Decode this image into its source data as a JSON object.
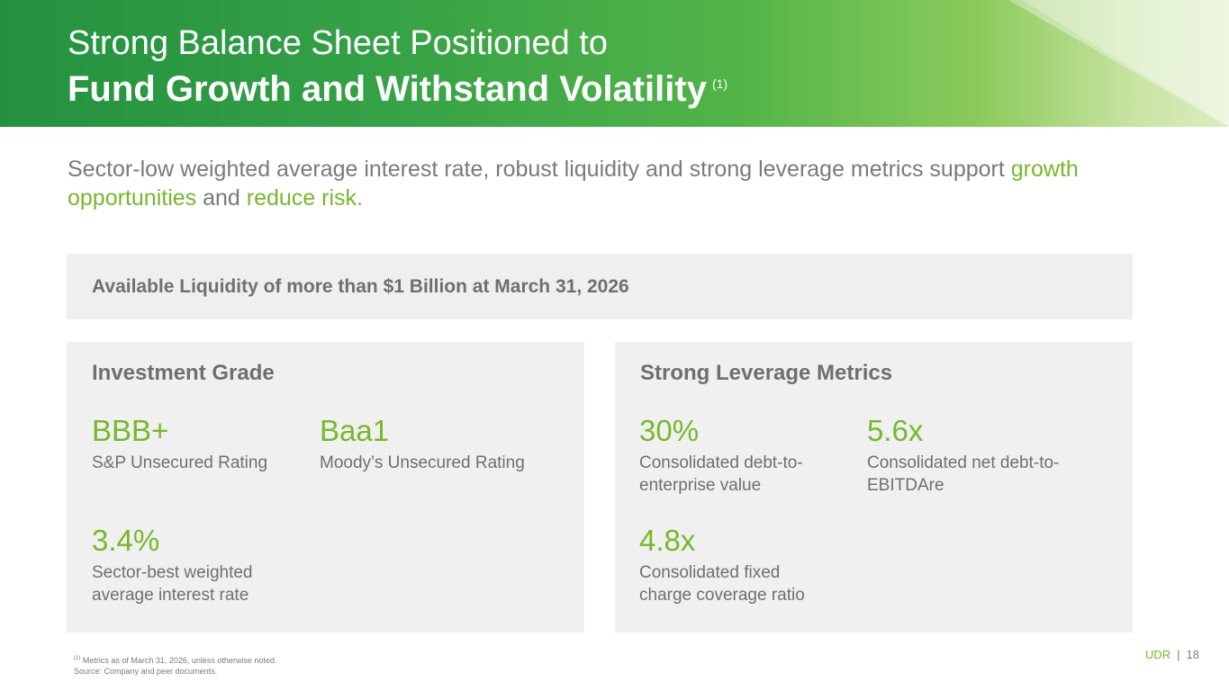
{
  "header": {
    "title_line1": "Strong Balance Sheet Positioned to",
    "title_line2": "Fund Growth and Withstand Volatility",
    "title_footnote_ref": "(1)"
  },
  "subtitle": {
    "part1": "Sector-low weighted average interest rate, robust liquidity and strong leverage metrics support ",
    "highlight1": "growth opportunities",
    "part2": " and ",
    "highlight2": "reduce risk",
    "part3": "."
  },
  "liquidity": {
    "text": "Available Liquidity of more than $1 Billion at March 31, 2026"
  },
  "investment_grade": {
    "title": "Investment Grade",
    "metrics": [
      {
        "value": "BBB+",
        "label": "S&P Unsecured Rating"
      },
      {
        "value": "Baa1",
        "label": "Moody’s Unsecured Rating"
      },
      {
        "value": "3.4%",
        "label": "Sector-best weighted average interest rate"
      }
    ]
  },
  "leverage": {
    "title": "Strong Leverage Metrics",
    "metrics": [
      {
        "value": "30%",
        "label": "Consolidated debt-to-enterprise value"
      },
      {
        "value": "5.6x",
        "label": "Consolidated net debt-to-EBITDAre"
      },
      {
        "value": "4.8x",
        "label": "Consolidated fixed charge coverage ratio"
      }
    ]
  },
  "footnote": {
    "ref": "(1)",
    "line1": " Metrics as of March 31, 2026, unless otherwise noted.",
    "line2": "Source: Company and peer documents."
  },
  "pager": {
    "brand": "UDR",
    "separator": "|",
    "page_number": "18"
  },
  "colors": {
    "accent_green": "#77b82a",
    "header_green": "#23913f",
    "text_gray": "#6f6f6f"
  }
}
